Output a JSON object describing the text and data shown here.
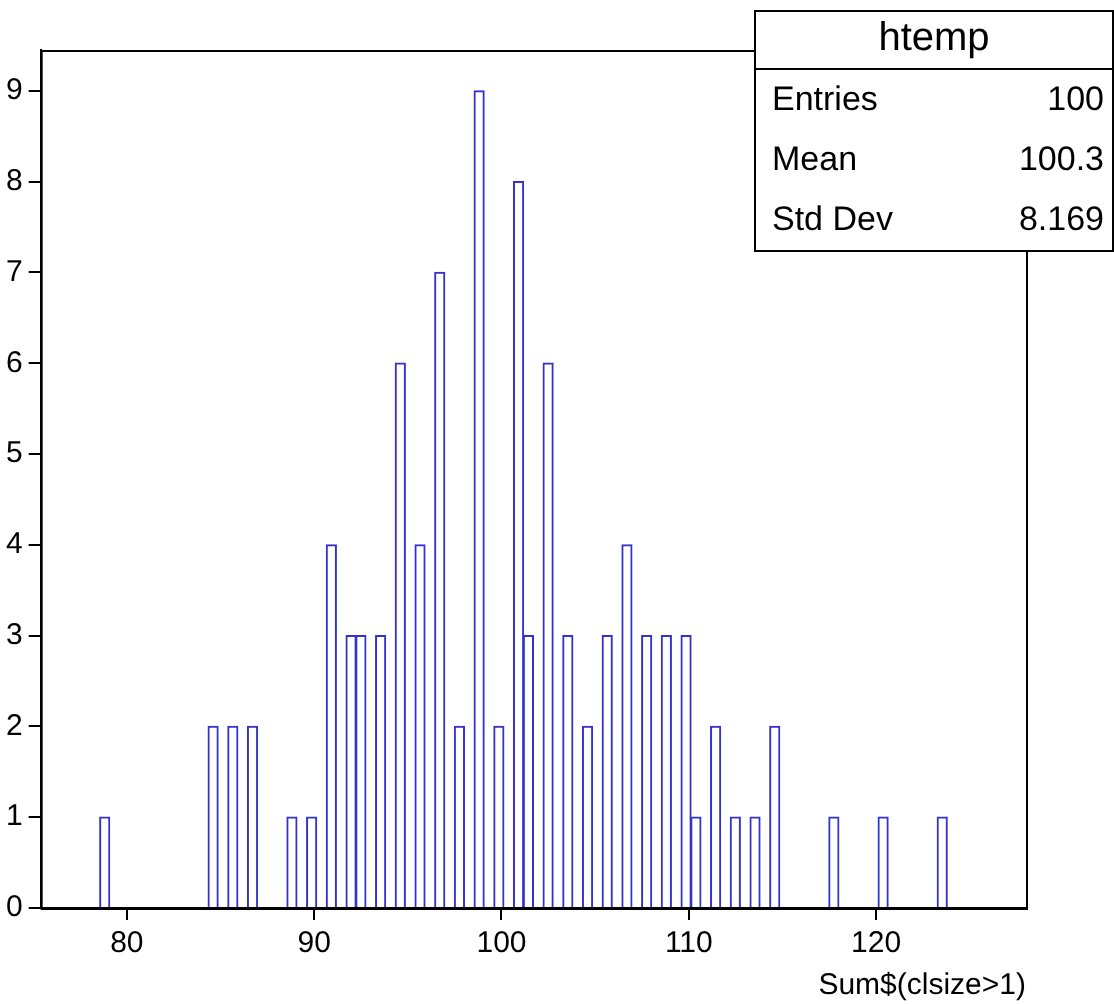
{
  "chart_data": {
    "type": "histogram",
    "xlabel": "Sum$(clsize>1)",
    "color": "#3333cc",
    "bins": [
      75.4,
      75.926,
      76.452,
      76.978,
      77.504,
      78.03,
      78.556,
      79.082,
      79.608,
      80.134,
      80.66,
      81.186,
      81.712,
      82.238,
      82.764,
      83.29,
      83.816,
      84.342,
      84.868,
      85.394,
      85.92,
      86.446,
      86.972,
      87.498,
      88.024,
      88.55,
      89.076,
      89.602,
      90.128,
      90.654,
      91.18,
      91.706,
      92.232,
      92.758,
      93.284,
      93.81,
      94.336,
      94.862,
      95.388,
      95.914,
      96.44,
      96.966,
      97.492,
      98.018,
      98.544,
      99.07,
      99.596,
      100.122,
      100.648,
      101.174,
      101.7,
      102.226,
      102.752,
      103.278,
      103.804,
      104.33,
      104.856,
      105.382,
      105.908,
      106.434,
      106.96,
      107.486,
      108.012,
      108.538,
      109.064,
      109.59,
      110.116,
      110.642,
      111.168,
      111.694,
      112.22,
      112.746,
      113.272,
      113.798,
      114.324,
      114.85,
      115.376,
      115.902,
      116.428,
      116.954,
      117.48,
      118.006,
      118.532,
      119.058,
      119.584,
      120.11,
      120.636,
      121.162,
      121.688,
      122.214,
      122.74,
      123.266,
      123.792,
      124.318,
      124.844,
      125.37,
      125.896,
      126.422,
      126.948,
      127.474,
      128.0
    ],
    "values": [
      0,
      0,
      0,
      0,
      0,
      0,
      1,
      0,
      0,
      0,
      0,
      0,
      0,
      0,
      0,
      0,
      0,
      2,
      0,
      2,
      0,
      2,
      0,
      0,
      0,
      1,
      0,
      1,
      0,
      4,
      0,
      3,
      3,
      0,
      3,
      0,
      6,
      0,
      4,
      0,
      7,
      0,
      2,
      0,
      9,
      0,
      2,
      0,
      8,
      3,
      0,
      6,
      0,
      3,
      0,
      2,
      0,
      3,
      0,
      4,
      0,
      3,
      0,
      3,
      0,
      3,
      1,
      0,
      2,
      0,
      1,
      0,
      1,
      0,
      2,
      0,
      0,
      0,
      0,
      0,
      1,
      0,
      0,
      0,
      0,
      1,
      0,
      0,
      0,
      0,
      0,
      1,
      0,
      0,
      0,
      0,
      0,
      0,
      0,
      0
    ],
    "xlim": [
      75.4,
      128.0
    ],
    "xticks": [
      80,
      90,
      100,
      110,
      120
    ],
    "ylim": [
      0,
      9.45
    ],
    "yticks": [
      0,
      1,
      2,
      3,
      4,
      5,
      6,
      7,
      8,
      9
    ],
    "grid": false,
    "legend": false,
    "annotations": [
      "htemp",
      "Entries",
      "100",
      "Mean",
      "100.3",
      "Std Dev",
      "8.169"
    ]
  }
}
